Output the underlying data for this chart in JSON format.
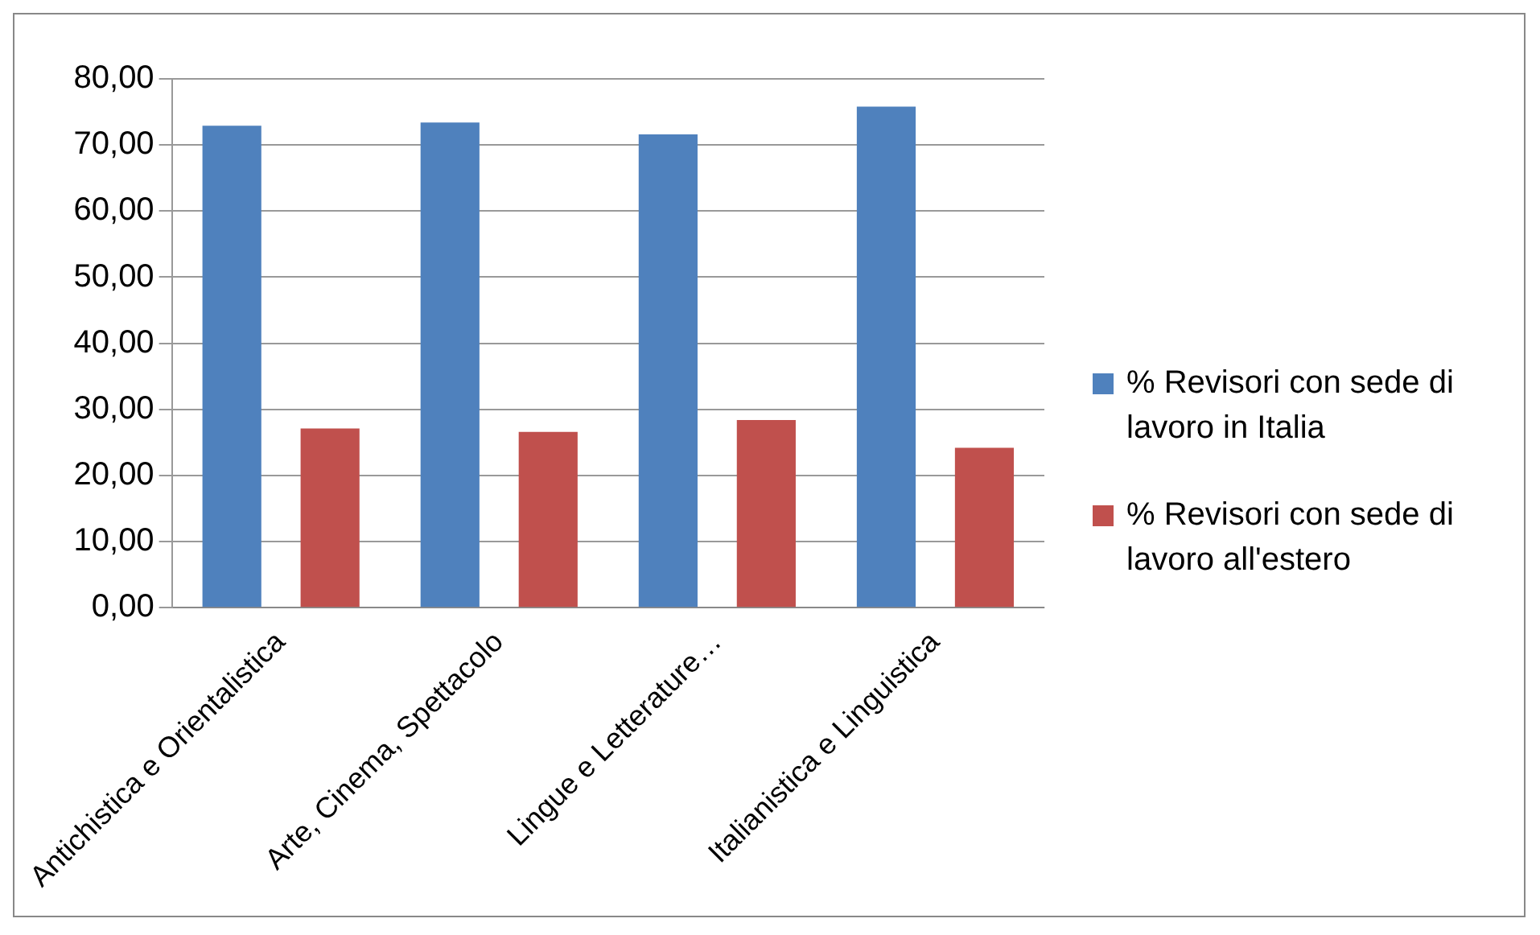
{
  "chart_data": {
    "type": "bar",
    "categories": [
      "Antichistica e Orientalistica",
      "Arte, Cinema, Spettacolo",
      "Lingue e Letterature…",
      "Italianistica e Linguistica"
    ],
    "series": [
      {
        "name": "% Revisori con sede di lavoro in Italia",
        "color": "#4f81bd",
        "values": [
          72.9,
          73.4,
          71.6,
          75.8
        ]
      },
      {
        "name": "% Revisori con sede di lavoro all'estero",
        "color": "#c0504d",
        "values": [
          27.1,
          26.6,
          28.4,
          24.2
        ]
      }
    ],
    "ylim": [
      0,
      80
    ],
    "yticks": [
      {
        "value": 0,
        "label": "0,00"
      },
      {
        "value": 10,
        "label": "10,00"
      },
      {
        "value": 20,
        "label": "20,00"
      },
      {
        "value": 30,
        "label": "30,00"
      },
      {
        "value": 40,
        "label": "40,00"
      },
      {
        "value": 50,
        "label": "50,00"
      },
      {
        "value": 60,
        "label": "60,00"
      },
      {
        "value": 70,
        "label": "70,00"
      },
      {
        "value": 80,
        "label": "80,00"
      }
    ],
    "grid": "y",
    "legend": "right"
  }
}
